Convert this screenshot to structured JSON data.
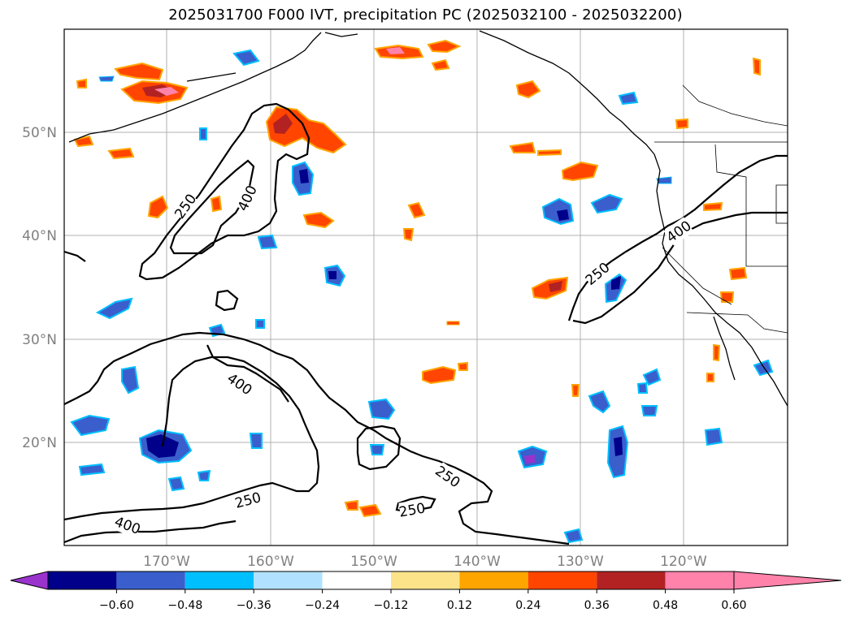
{
  "title": "2025031700 F000 IVT, precipitation PC (2025032100 - 2025032200)",
  "map": {
    "lat_labels": [
      "50°N",
      "40°N",
      "30°N",
      "20°N"
    ],
    "lon_labels": [
      "170°W",
      "160°W",
      "150°W",
      "140°W",
      "130°W",
      "120°W"
    ],
    "contour_labels": [
      "250",
      "400",
      "400",
      "250",
      "250",
      "400",
      "250",
      "250",
      "400"
    ],
    "grid": true
  },
  "colorbar": {
    "ticks": [
      "−0.60",
      "−0.48",
      "−0.36",
      "−0.24",
      "−0.12",
      "0.12",
      "0.24",
      "0.36",
      "0.48",
      "0.60"
    ],
    "colors": [
      "#9933cc",
      "#00008b",
      "#3a5fcd",
      "#00bfff",
      "#b0e2ff",
      "#ffffff",
      "#fce38a",
      "#ffa500",
      "#ff4500",
      "#b22222",
      "#ff82ab"
    ]
  }
}
